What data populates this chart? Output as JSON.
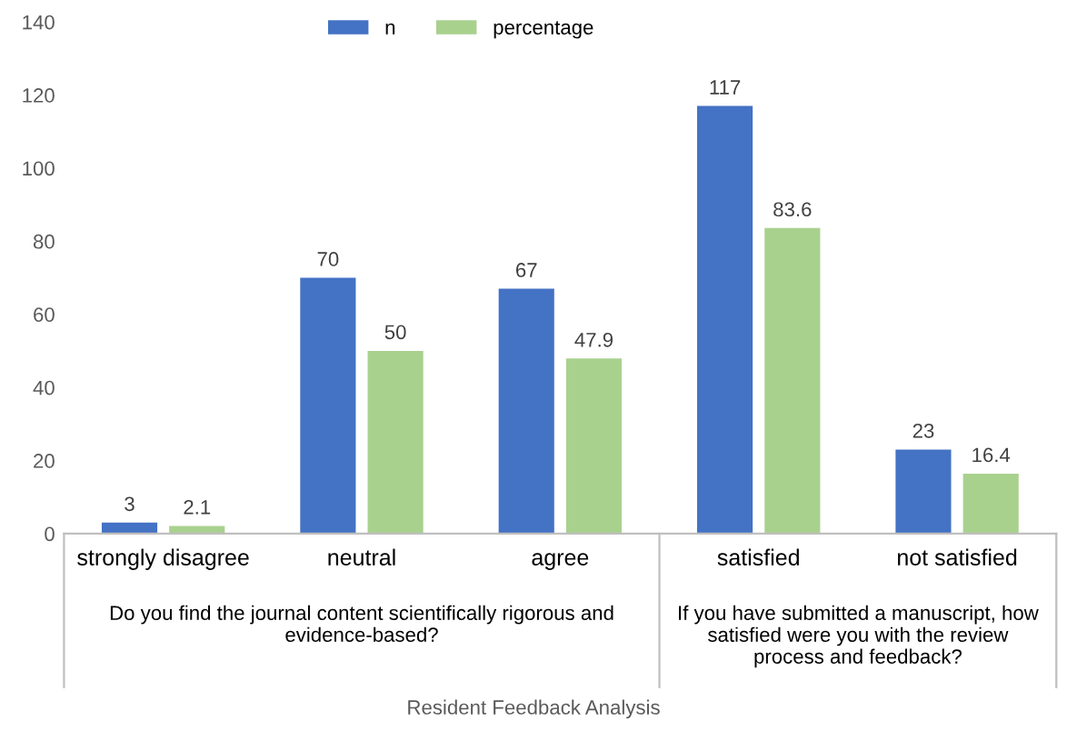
{
  "chart_data": {
    "type": "bar",
    "categories": [
      "strongly disagree",
      "neutral",
      "agree",
      "satisfied",
      "not satisfied"
    ],
    "series": [
      {
        "name": "n",
        "color": "#4472c4",
        "values": [
          3,
          70,
          67,
          117,
          23
        ]
      },
      {
        "name": "percentage",
        "color": "#a9d18e",
        "values": [
          2.1,
          50,
          47.9,
          83.6,
          16.4
        ]
      }
    ],
    "ylim": [
      0,
      140
    ],
    "yticks": [
      0,
      20,
      40,
      60,
      80,
      100,
      120,
      140
    ],
    "grid": false,
    "legend": "top",
    "data_labels": true,
    "annotations": [
      "Do you find the journal content scientifically rigorous and evidence-based?",
      "If you have submitted a manuscript, how satisfied were you with the review process and feedback?",
      "Resident Feedback Analysis"
    ]
  }
}
